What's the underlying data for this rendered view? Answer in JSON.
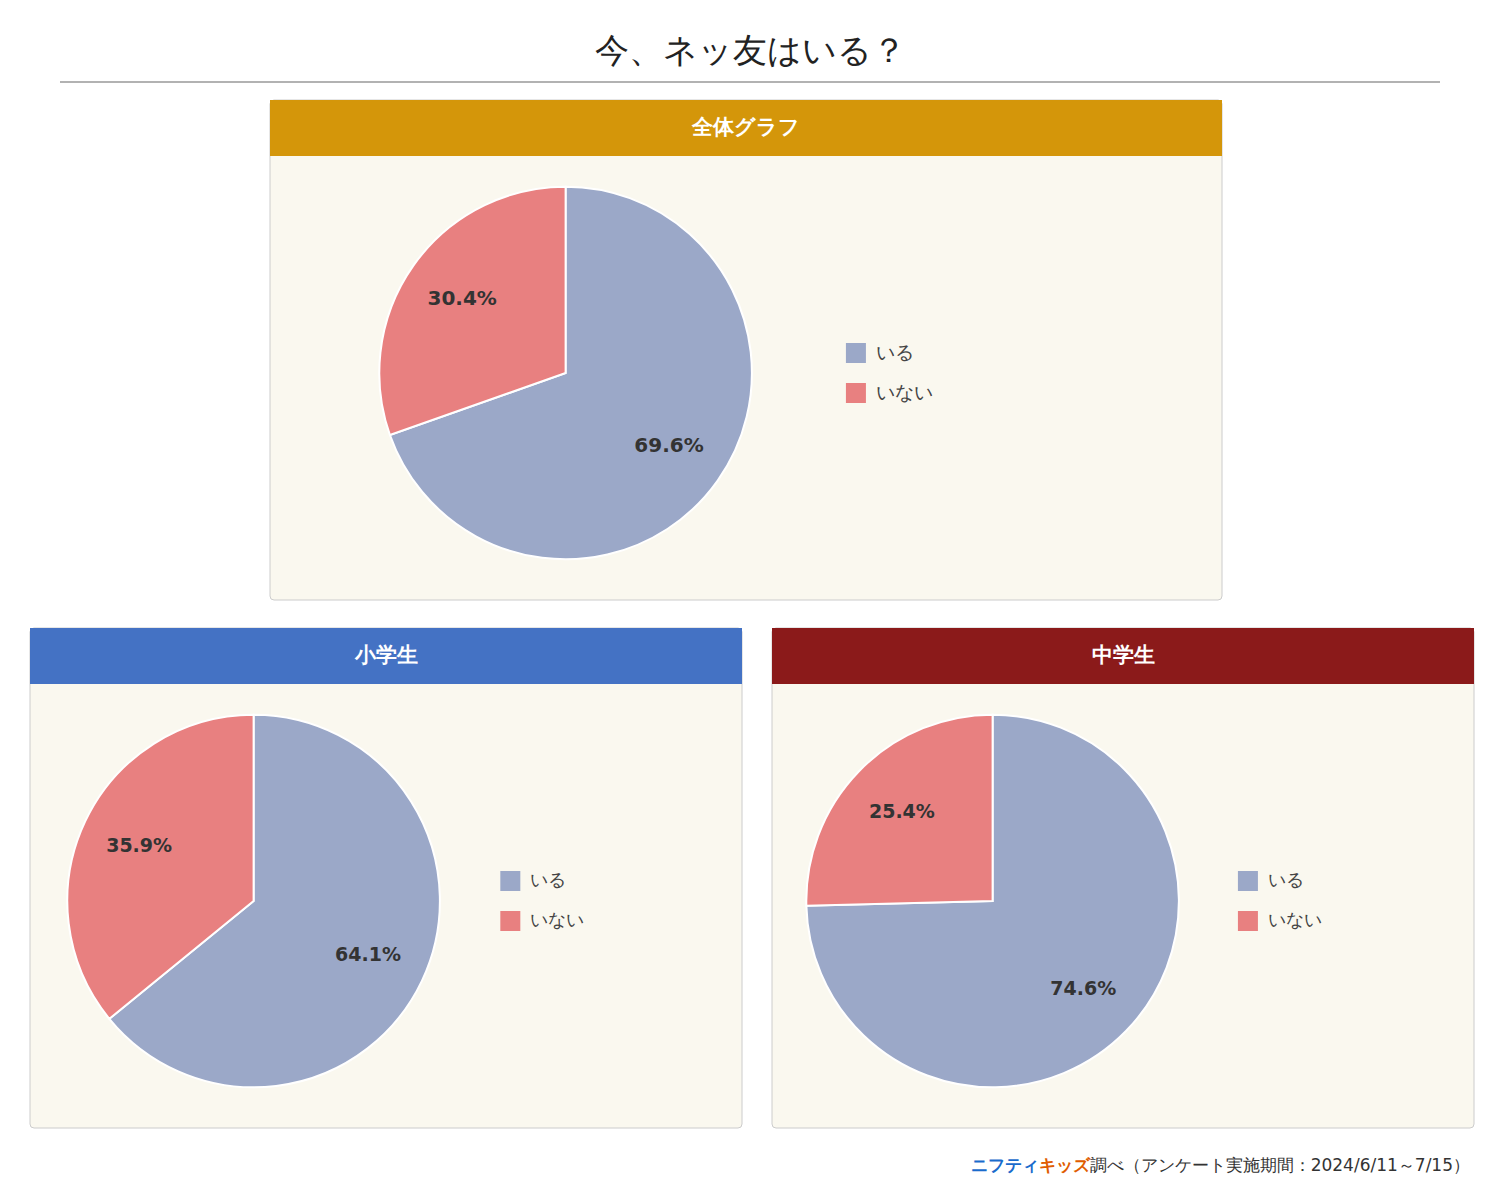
{
  "title": "今、ネッ友はいる？",
  "annotations": [
    {
      "text": "ニフティ",
      "color": "#1a6bcc"
    },
    {
      "text": "キッズ",
      "color": "#e05c00"
    },
    {
      "text": "調べ（アンケート実施期間：2024/6/11～7/15）",
      "color": "#333333"
    }
  ],
  "chart_data": [
    {
      "type": "pie",
      "title": "全体グラフ",
      "categories": [
        "いる",
        "いない"
      ],
      "values": [
        69.6,
        30.4
      ],
      "value_labels": [
        "69.6%",
        "30.4%"
      ],
      "colors": [
        "#9BA8C8",
        "#E88080"
      ],
      "data_labels": true,
      "legend": "right"
    },
    {
      "type": "pie",
      "title": "小学生",
      "categories": [
        "いる",
        "いない"
      ],
      "values": [
        64.1,
        35.9
      ],
      "value_labels": [
        "64.1%",
        "35.9%"
      ],
      "colors": [
        "#9BA8C8",
        "#E88080"
      ],
      "data_labels": true,
      "legend": "right"
    },
    {
      "type": "pie",
      "title": "中学生",
      "categories": [
        "いる",
        "いない"
      ],
      "values": [
        74.6,
        25.4
      ],
      "value_labels": [
        "74.6%",
        "25.4%"
      ],
      "colors": [
        "#9BA8C8",
        "#E88080"
      ],
      "data_labels": true,
      "legend": "right"
    }
  ]
}
